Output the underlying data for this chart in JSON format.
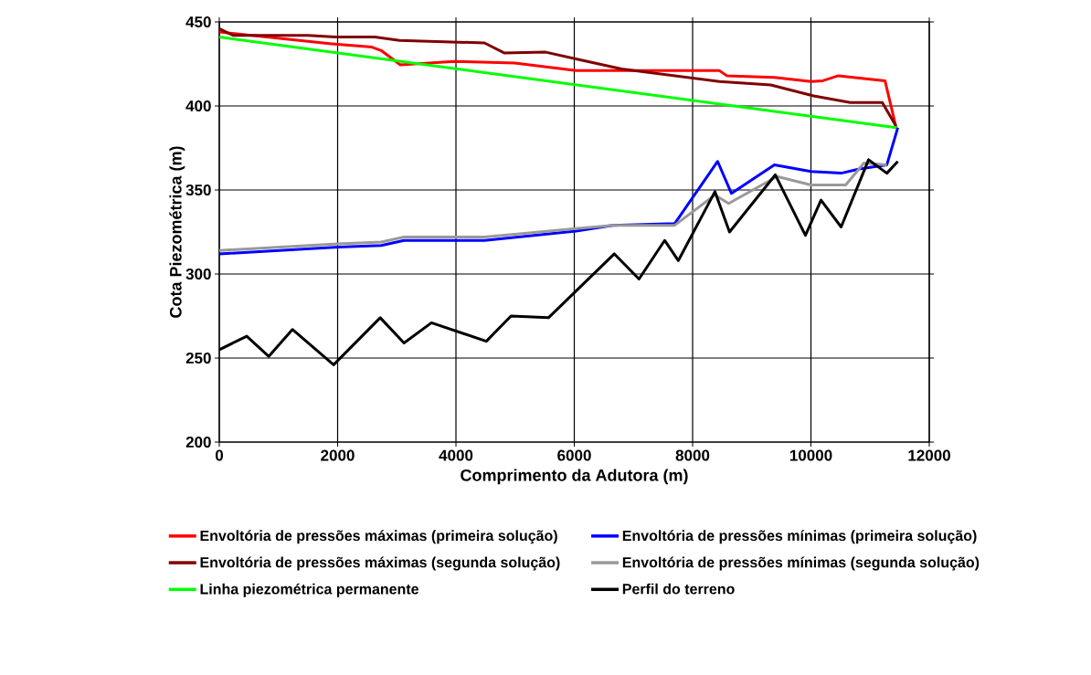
{
  "chart_data": {
    "type": "line",
    "xlabel": "Comprimento da Adutora (m)",
    "ylabel": "Cota Piezométrica (m)",
    "xlim": [
      0,
      12000
    ],
    "ylim": [
      200,
      450
    ],
    "xticks": [
      0,
      2000,
      4000,
      6000,
      8000,
      10000,
      12000
    ],
    "yticks": [
      200,
      250,
      300,
      350,
      400,
      450
    ],
    "grid": true,
    "legend": "bottom",
    "marker": "none",
    "line_style": "solid",
    "series": [
      {
        "name": "Envoltória de pressões máximas (primeira solução)",
        "color": "#ff0000",
        "x": [
          0,
          1900,
          2580,
          2736,
          3060,
          3972,
          4992,
          6028,
          8454,
          8578,
          9382,
          10000,
          10200,
          10463,
          11252,
          11437
        ],
        "values": [
          444,
          437,
          435,
          433,
          424.5,
          426.5,
          425.5,
          421,
          421,
          418,
          417,
          414.5,
          415,
          418,
          415,
          387.5
        ]
      },
      {
        "name": "Envoltória de pressões máximas (segunda solução)",
        "color": "#800000",
        "x": [
          0,
          232,
          1500,
          1963,
          2627,
          3045,
          4482,
          4822,
          5518,
          6028,
          6800,
          8454,
          9320,
          10046,
          10665,
          11206,
          11437
        ],
        "values": [
          446,
          442,
          442,
          441,
          441,
          439,
          437.5,
          431.5,
          432,
          428,
          422,
          414.5,
          412.5,
          406,
          402,
          402,
          388
        ]
      },
      {
        "name": "Linha piezométrica permanente",
        "color": "#00ff00",
        "x": [
          0,
          11468
        ],
        "values": [
          441,
          387
        ]
      },
      {
        "name": "Envoltória de pressões mínimas (primeira solução)",
        "color": "#0000ff",
        "x": [
          0,
          2009,
          2736,
          3122,
          4482,
          6028,
          6646,
          7697,
          8423,
          8655,
          9382,
          10000,
          10510,
          10819,
          11283,
          11468
        ],
        "values": [
          312,
          316,
          317,
          320,
          320,
          325.5,
          329,
          330,
          367,
          348,
          365,
          361,
          360,
          362.5,
          365,
          387
        ]
      },
      {
        "name": "Envoltória de pressões mínimas (segunda solução)",
        "color": "#999999",
        "x": [
          0,
          2000,
          2736,
          3122,
          4482,
          6028,
          6646,
          7697,
          8377,
          8609,
          9428,
          10000,
          10587,
          10896,
          11283
        ],
        "values": [
          314,
          318,
          319,
          322,
          322,
          327,
          329,
          329,
          347,
          342,
          358,
          353,
          353,
          366,
          365
        ]
      },
      {
        "name": "Perfil do terreno",
        "color": "#000000",
        "x": [
          0,
          464,
          835,
          1236,
          1932,
          2720,
          3122,
          3586,
          4513,
          4930,
          5564,
          6677,
          7094,
          7527,
          7759,
          8377,
          8624,
          9397,
          9907,
          10170,
          10510,
          10974,
          11283,
          11468
        ],
        "values": [
          255,
          263,
          251,
          267,
          246,
          274,
          259,
          271,
          260,
          275,
          274,
          312,
          297,
          320,
          308,
          349,
          325,
          359,
          323,
          344,
          328,
          368,
          360,
          367
        ]
      }
    ]
  }
}
